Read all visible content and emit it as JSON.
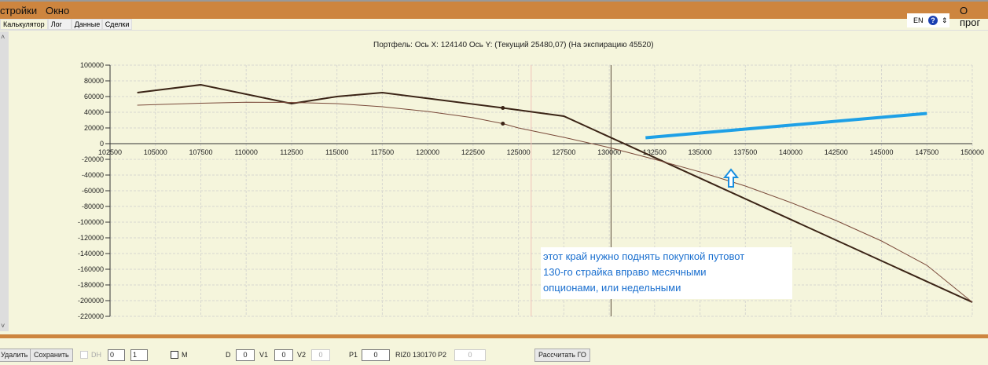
{
  "menu": {
    "items": [
      "стройки",
      "Окно"
    ],
    "about": "О прог"
  },
  "tabs": [
    "Калькулятор",
    "Лог",
    "Данные",
    "Сделки"
  ],
  "lang": {
    "value": "EN",
    "help": "?"
  },
  "chart_title": "Портфель: Ось X: 124140 Ось Y:  (Текущий 25480,07)  (На экспирацию 45520)",
  "chart_data": {
    "type": "line",
    "xlim": [
      102500,
      150000
    ],
    "ylim": [
      -220000,
      100000
    ],
    "xticks": [
      102500,
      105000,
      107500,
      110000,
      112500,
      115000,
      117500,
      120000,
      122500,
      125000,
      127500,
      130000,
      132500,
      135000,
      137500,
      140000,
      142500,
      145000,
      147500,
      150000
    ],
    "yticks": [
      100000,
      80000,
      60000,
      40000,
      20000,
      0,
      -20000,
      -40000,
      -60000,
      -80000,
      -100000,
      -120000,
      -140000,
      -160000,
      -180000,
      -200000,
      -220000
    ],
    "grid": true,
    "cursor_x": 130100,
    "marker_x": 125700,
    "series": [
      {
        "color": "#3b2416",
        "x": [
          104000,
          107500,
          112500,
          115000,
          117500,
          124140,
          127500,
          150000
        ],
        "y": [
          65000,
          75000,
          51000,
          60000,
          65000,
          45520,
          35000,
          -202000
        ]
      },
      {
        "color": "#7a4a3a",
        "x": [
          104000,
          107500,
          110000,
          112500,
          115000,
          117500,
          120000,
          122500,
          124140,
          125000,
          127500,
          130000,
          132500,
          135000,
          137500,
          140000,
          142500,
          145000,
          147500,
          150000
        ],
        "y": [
          49000,
          51500,
          52800,
          52500,
          51000,
          47000,
          41000,
          33000,
          25480,
          20000,
          8000,
          -5000,
          -20000,
          -36000,
          -54000,
          -75000,
          -98000,
          -124000,
          -155000,
          -202000
        ]
      },
      {
        "color": "#1ea0e6",
        "x": [
          132000,
          147500
        ],
        "y": [
          7500,
          38500
        ]
      }
    ],
    "points": [
      {
        "x": 124140,
        "y": 45520
      },
      {
        "x": 124140,
        "y": 25480
      }
    ]
  },
  "annotation": {
    "lines": [
      "этот край нужно поднять покупкой путовот",
      "130-го страйка вправо месячными",
      "опционами, или недельными"
    ],
    "arrow_color": "#1a8fe0"
  },
  "bottom": {
    "delete": "Удалить",
    "save": "Сохранить",
    "dh": "DH",
    "spin1": "0",
    "spin2": "1",
    "m": "M",
    "d_label": "D",
    "d": "0",
    "v1_label": "V1",
    "v1": "0",
    "v2_label": "V2",
    "v2": "0",
    "p1_label": "P1",
    "p1": "0",
    "instrument": "RIZ0 130170",
    "p2_label": "P2",
    "p2": "0",
    "calc": "Рассчитать ГО"
  }
}
